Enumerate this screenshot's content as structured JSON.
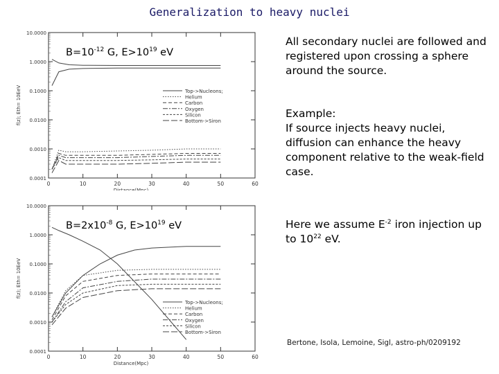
{
  "slide": {
    "title": "Generalization to heavy nuclei",
    "paragraph1": "All secondary nuclei are followed and registered upon crossing a sphere around the source.",
    "example_head": "Example:",
    "example_body": "If source injects heavy nuclei, diffusion can enhance the heavy component relative to the weak-field case.",
    "assume_pre": "Here we assume E",
    "assume_exp": "-2",
    "assume_mid": " iron injection up to 10",
    "assume_exp2": "22",
    "assume_post": " eV.",
    "citation": "Bertone, Isola, Lemoine, Sigl, astro-ph/0209192"
  },
  "chart_data": [
    {
      "type": "line",
      "annotation": {
        "pre": "B=10",
        "exp": "-12",
        "mid": " G, E>10",
        "exp2": "19",
        "post": " eV"
      },
      "xlabel": "Distance(Mpc)",
      "ylabel": "f(z); Eth=  10EeV",
      "xlim": [
        0,
        60
      ],
      "ylim": [
        0.0001,
        10
      ],
      "yscale": "log",
      "xticks": [
        "0",
        "10",
        "20",
        "30",
        "40",
        "50",
        "60"
      ],
      "yticks": [
        "10.0000",
        "1.0000",
        "0.1000",
        "0.0100",
        "0.0010",
        "0.0001"
      ],
      "legend": [
        "Top->Nucleons;",
        "Helium",
        "Carbon",
        "Oxygen",
        "Silicon",
        "Bottom->Siron"
      ],
      "series": [
        {
          "x": [
            1,
            3,
            6,
            10,
            20,
            30,
            50
          ],
          "y": [
            1.2,
            0.9,
            0.78,
            0.75,
            0.74,
            0.74,
            0.74
          ]
        },
        {
          "x": [
            1,
            3,
            6,
            10,
            20,
            30,
            50
          ],
          "y": [
            0.15,
            0.45,
            0.55,
            0.58,
            0.6,
            0.6,
            0.6
          ]
        },
        {
          "x": [
            1,
            3,
            5,
            10,
            20,
            30,
            40,
            50
          ],
          "y": [
            0.0002,
            0.0009,
            0.0008,
            0.0008,
            0.00085,
            0.0009,
            0.001,
            0.001
          ]
        },
        {
          "x": [
            1,
            3,
            5,
            10,
            20,
            30,
            40,
            50
          ],
          "y": [
            0.0002,
            0.0007,
            0.0006,
            0.0006,
            0.0006,
            0.00065,
            0.0007,
            0.0007
          ]
        },
        {
          "x": [
            1,
            3,
            5,
            10,
            20,
            30,
            40,
            50
          ],
          "y": [
            0.0002,
            0.0006,
            0.0005,
            0.0005,
            0.0005,
            0.00055,
            0.0006,
            0.0006
          ]
        },
        {
          "x": [
            1,
            3,
            5,
            10,
            20,
            30,
            40,
            50
          ],
          "y": [
            0.0002,
            0.0005,
            0.0004,
            0.0004,
            0.0004,
            0.00042,
            0.00045,
            0.00045
          ]
        },
        {
          "x": [
            1,
            3,
            5,
            10,
            20,
            30,
            40,
            50
          ],
          "y": [
            0.00015,
            0.0004,
            0.0003,
            0.0003,
            0.0003,
            0.00032,
            0.00035,
            0.00035
          ]
        }
      ]
    },
    {
      "type": "line",
      "annotation": {
        "pre": "B=2x10",
        "exp": "-8",
        "mid": " G, E>10",
        "exp2": "19",
        "post": " eV"
      },
      "xlabel": "Distance(Mpc)",
      "ylabel": "f(z); Eth=  10EeV",
      "xlim": [
        0,
        60
      ],
      "ylim": [
        0.0001,
        10
      ],
      "yscale": "log",
      "xticks": [
        "0",
        "10",
        "20",
        "30",
        "40",
        "50",
        "60"
      ],
      "yticks": [
        "10.0000",
        "1.0000",
        "0.1000",
        "0.0100",
        "0.0010",
        "0.0001"
      ],
      "legend": [
        "Top->Nucleons;",
        "Helium",
        "Carbon",
        "Oxygen",
        "Silicon",
        "Bottom->Siron"
      ],
      "series": [
        {
          "x": [
            1,
            3,
            6,
            10,
            15,
            20,
            30,
            40
          ],
          "y": [
            1.8,
            1.4,
            1.0,
            0.6,
            0.3,
            0.1,
            0.006,
            0.00025
          ]
        },
        {
          "x": [
            1,
            5,
            10,
            15,
            20,
            25,
            30,
            40,
            50
          ],
          "y": [
            0.0015,
            0.01,
            0.04,
            0.1,
            0.2,
            0.3,
            0.35,
            0.4,
            0.4
          ]
        },
        {
          "x": [
            1,
            5,
            10,
            20,
            30,
            40,
            50
          ],
          "y": [
            0.0015,
            0.012,
            0.04,
            0.06,
            0.065,
            0.065,
            0.065
          ]
        },
        {
          "x": [
            1,
            5,
            10,
            20,
            30,
            40,
            50
          ],
          "y": [
            0.0012,
            0.008,
            0.025,
            0.04,
            0.045,
            0.045,
            0.045
          ]
        },
        {
          "x": [
            1,
            5,
            10,
            20,
            30,
            40,
            50
          ],
          "y": [
            0.001,
            0.005,
            0.015,
            0.025,
            0.03,
            0.03,
            0.03
          ]
        },
        {
          "x": [
            1,
            5,
            10,
            20,
            30,
            40,
            50
          ],
          "y": [
            0.001,
            0.004,
            0.01,
            0.018,
            0.02,
            0.02,
            0.02
          ]
        },
        {
          "x": [
            1,
            5,
            10,
            20,
            30,
            40,
            50
          ],
          "y": [
            0.0008,
            0.003,
            0.007,
            0.012,
            0.014,
            0.014,
            0.014
          ]
        }
      ]
    }
  ]
}
